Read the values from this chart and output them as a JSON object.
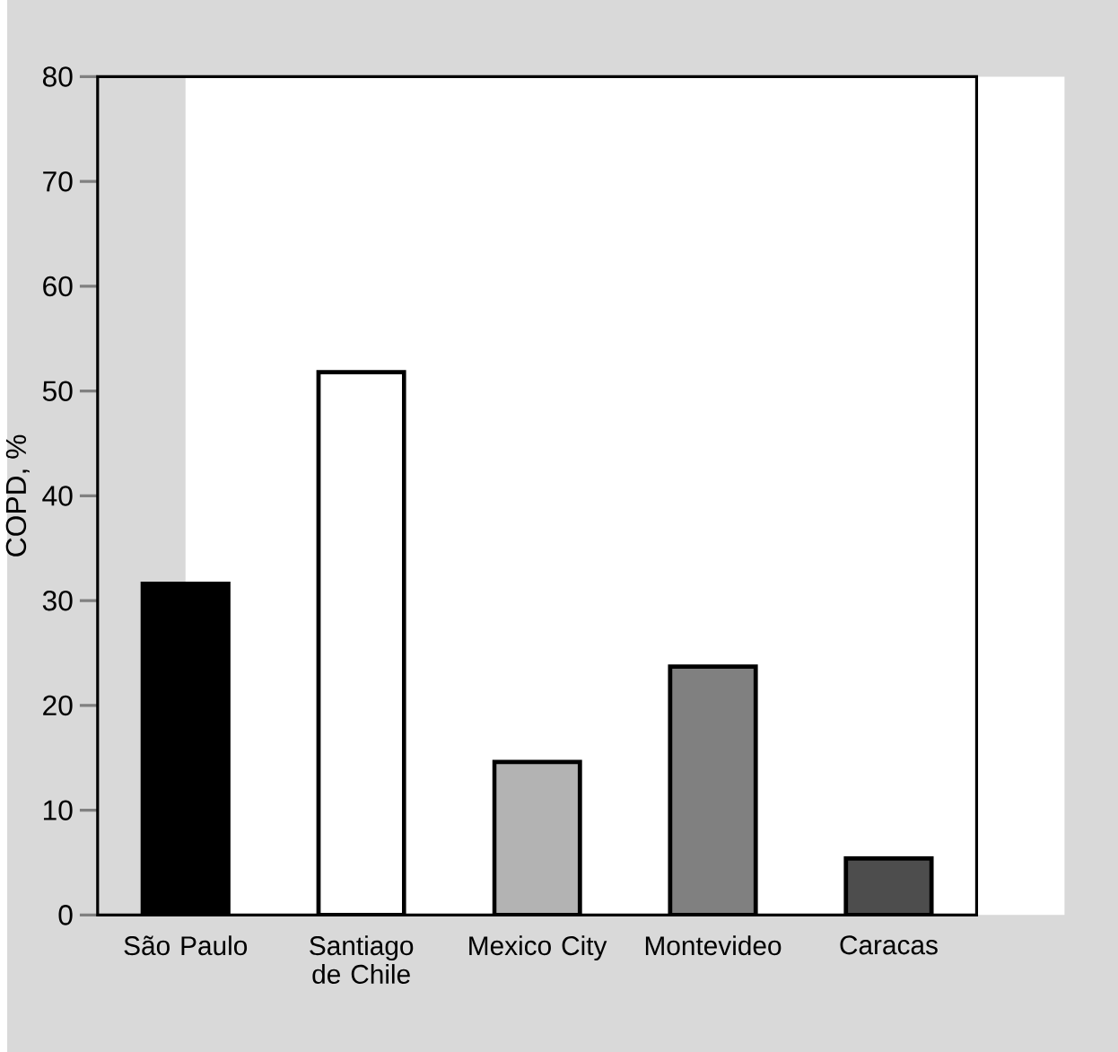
{
  "chart_data": {
    "type": "bar",
    "ylabel": "COPD, %",
    "categories": [
      "São Paulo",
      "Santiago de Chile",
      "Mexico City",
      "Montevideo",
      "Caracas"
    ],
    "values": [
      31.6,
      51.8,
      14.6,
      23.7,
      5.4
    ],
    "colors": [
      "#000000",
      "#ffffff",
      "#b3b3b3",
      "#808080",
      "#4d4d4d"
    ],
    "ylim": [
      0,
      80
    ],
    "yticks": [
      0,
      10,
      20,
      30,
      40,
      50,
      60,
      70,
      80
    ]
  }
}
